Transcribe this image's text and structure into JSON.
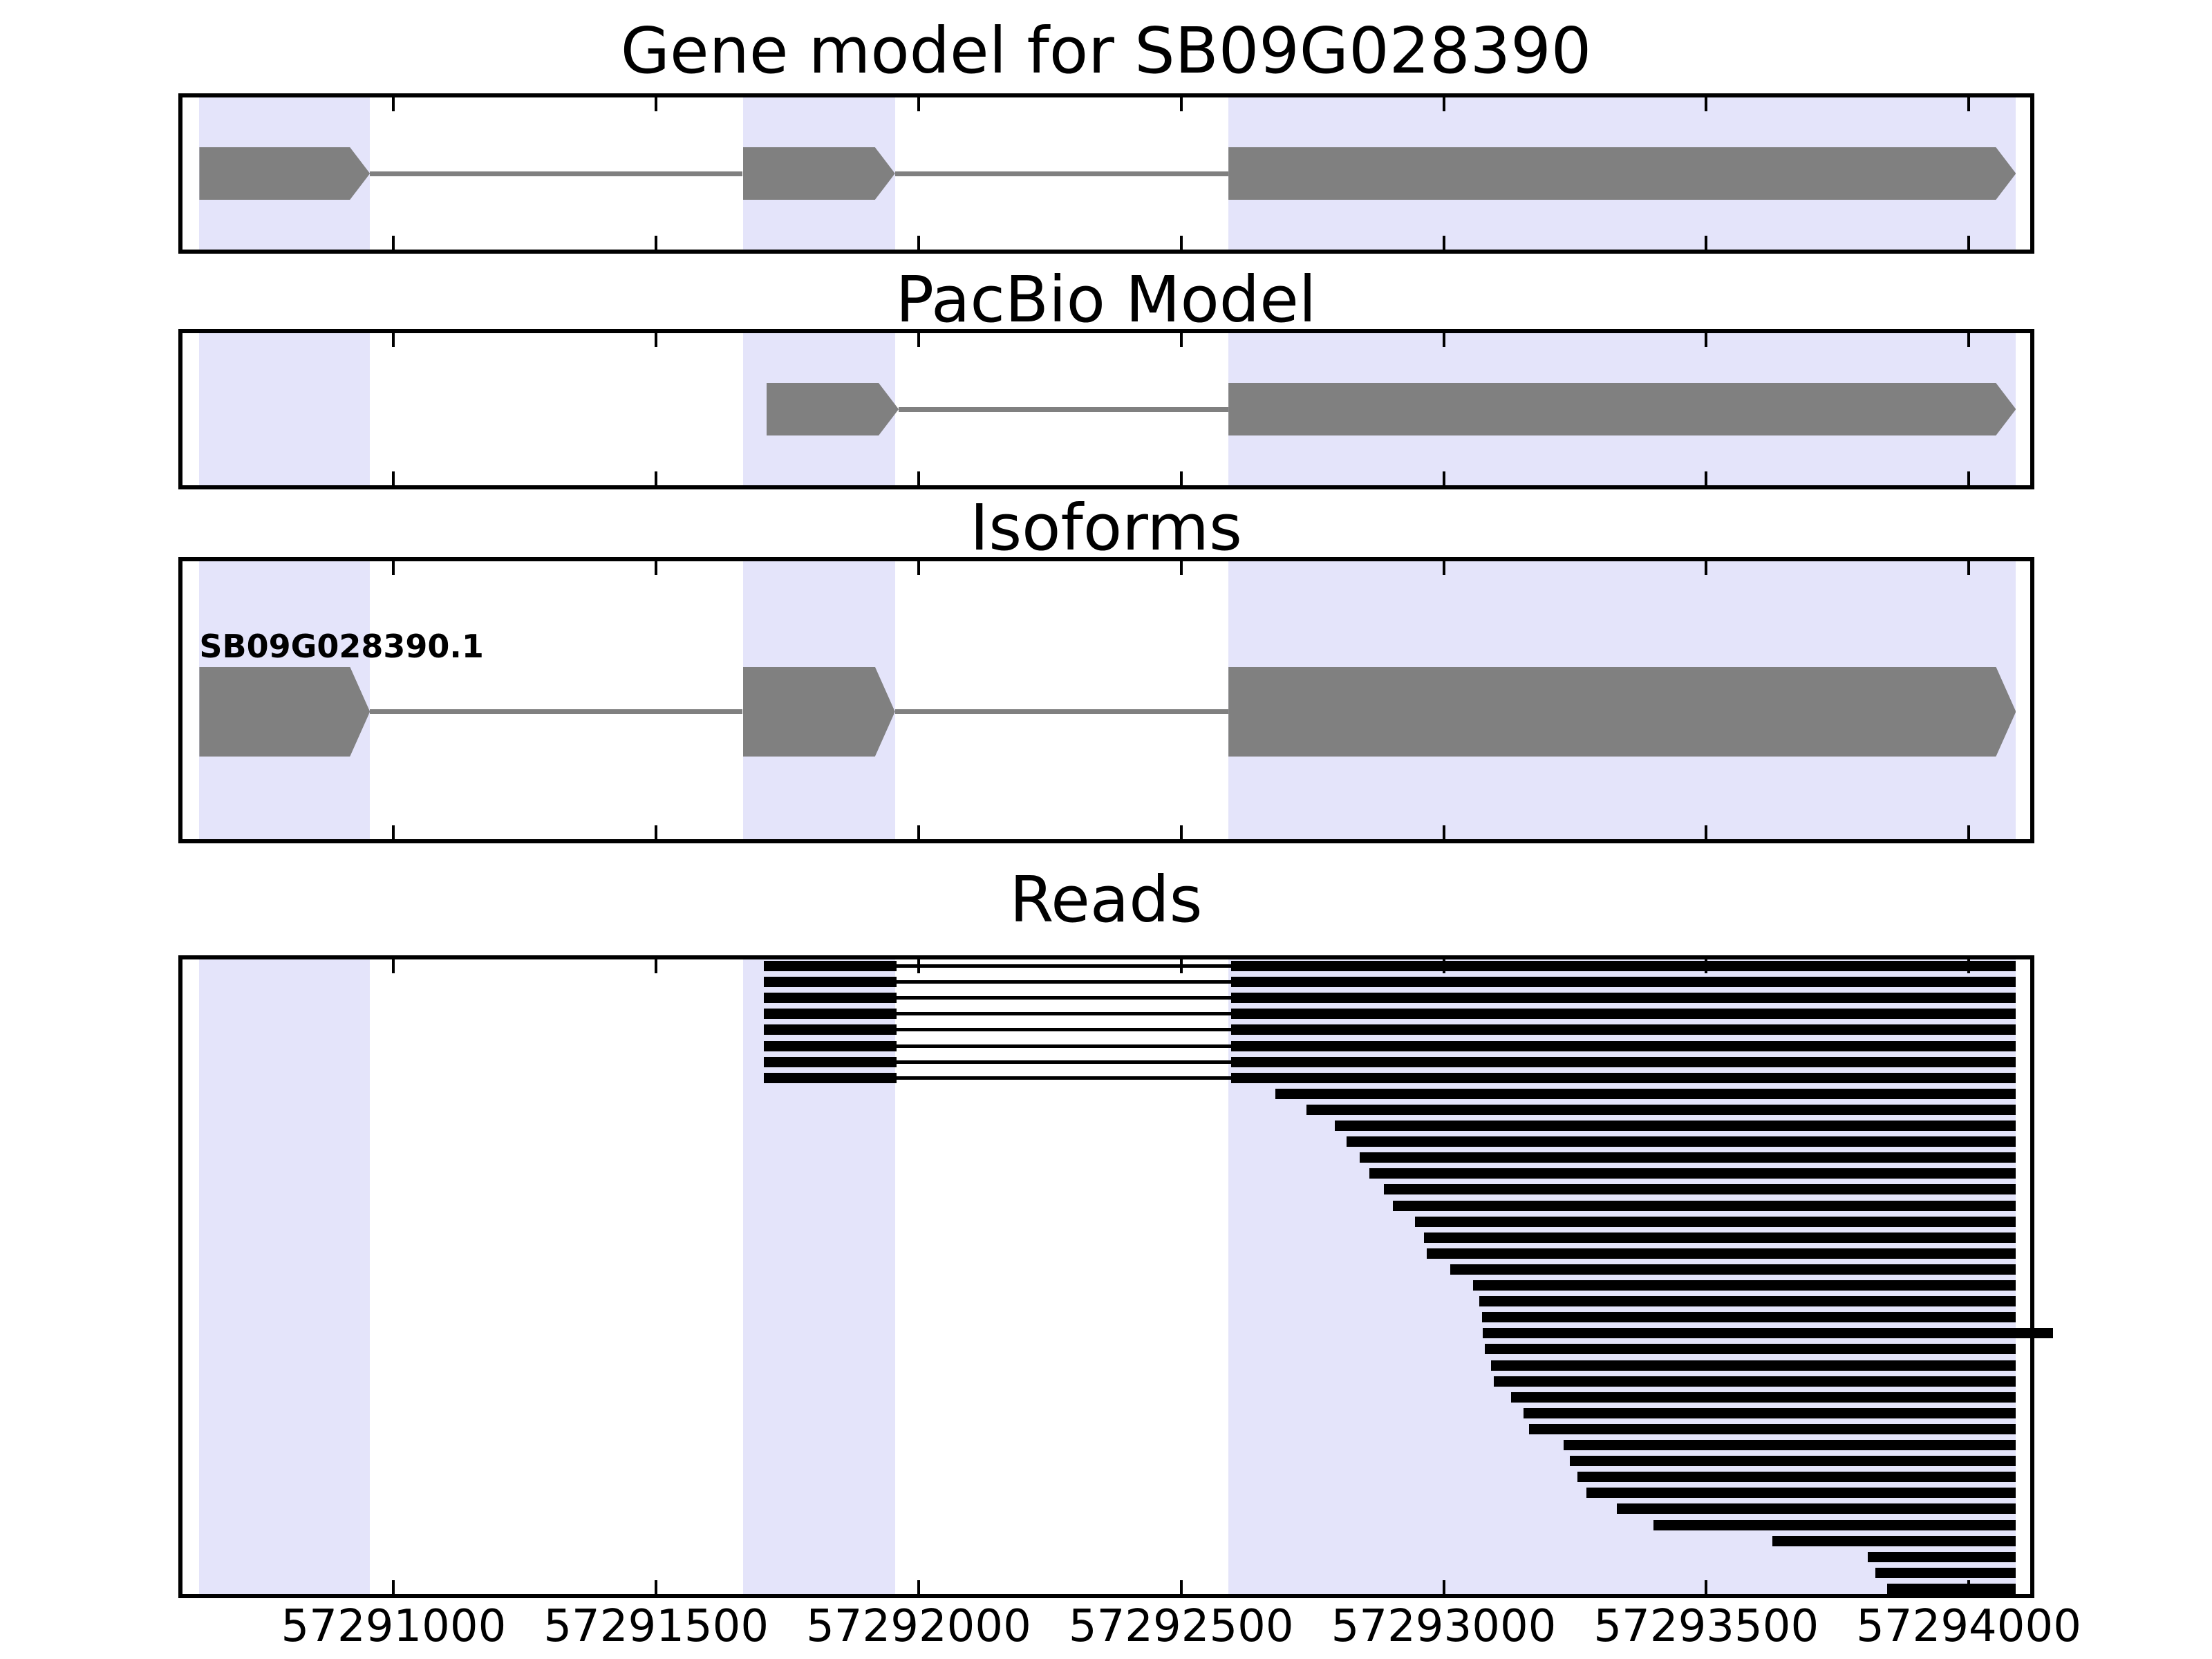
{
  "chart_data": {
    "type": "genome-tracks",
    "figure_title": "Gene model for SB09G028390",
    "axis": {
      "xmin": 57290590,
      "xmax": 57294125,
      "ticks": [
        57291000,
        57291500,
        57292000,
        57292500,
        57293000,
        57293500,
        57294000
      ],
      "tick_labels": [
        "57291000",
        "57291500",
        "57292000",
        "57292500",
        "57293000",
        "57293500",
        "57294000"
      ],
      "grid": false,
      "tick_style": "inward-top-and-bottom"
    },
    "colors": {
      "highlight_band": "#e4e4fa",
      "exon_fill": "#808080",
      "intron_line": "#808080",
      "read_fill": "#000000",
      "spine": "#000000",
      "background": "#ffffff",
      "text": "#000000"
    },
    "highlight_bands": [
      {
        "start": 57290630,
        "end": 57290955
      },
      {
        "start": 57291665,
        "end": 57291955
      },
      {
        "start": 57292590,
        "end": 57294090
      }
    ],
    "panels": [
      {
        "id": "gene-model",
        "title": "Gene model for SB09G028390",
        "kind": "model",
        "strand": "+",
        "exons": [
          {
            "start": 57290630,
            "end": 57290955
          },
          {
            "start": 57291665,
            "end": 57291955
          },
          {
            "start": 57292590,
            "end": 57294090
          }
        ]
      },
      {
        "id": "pacbio-model",
        "title": "PacBio Model",
        "kind": "model",
        "strand": "+",
        "exons": [
          {
            "start": 57291710,
            "end": 57291962
          },
          {
            "start": 57292590,
            "end": 57294090
          }
        ]
      },
      {
        "id": "isoforms",
        "title": "Isoforms",
        "kind": "model",
        "strand": "+",
        "isoform_label": "SB09G028390.1",
        "exons": [
          {
            "start": 57290630,
            "end": 57290955
          },
          {
            "start": 57291665,
            "end": 57291955
          },
          {
            "start": 57292590,
            "end": 57294090
          }
        ]
      },
      {
        "id": "reads",
        "title": "Reads",
        "kind": "reads",
        "reads": {
          "spliced": {
            "count": 8,
            "exon1": {
              "start": 57291705,
              "end": 57291958
            },
            "exon2": {
              "start": 57292595,
              "end": 57294090
            }
          },
          "single": {
            "end": 57294090,
            "starts": [
              57292680,
              57292738,
              57292792,
              57292815,
              57292840,
              57292858,
              57292886,
              57292903,
              57292945,
              57292962,
              57292968,
              57293012,
              57293056,
              57293068,
              57293073,
              57293075,
              57293078,
              57293090,
              57293095,
              57293128,
              57293152,
              57293162,
              57293228,
              57293240,
              57293255,
              57293272,
              57293330,
              57293400,
              57293626,
              57293808,
              57293822,
              57293845
            ],
            "long_read_index": 15,
            "long_read_end": 57294160
          }
        }
      }
    ]
  }
}
